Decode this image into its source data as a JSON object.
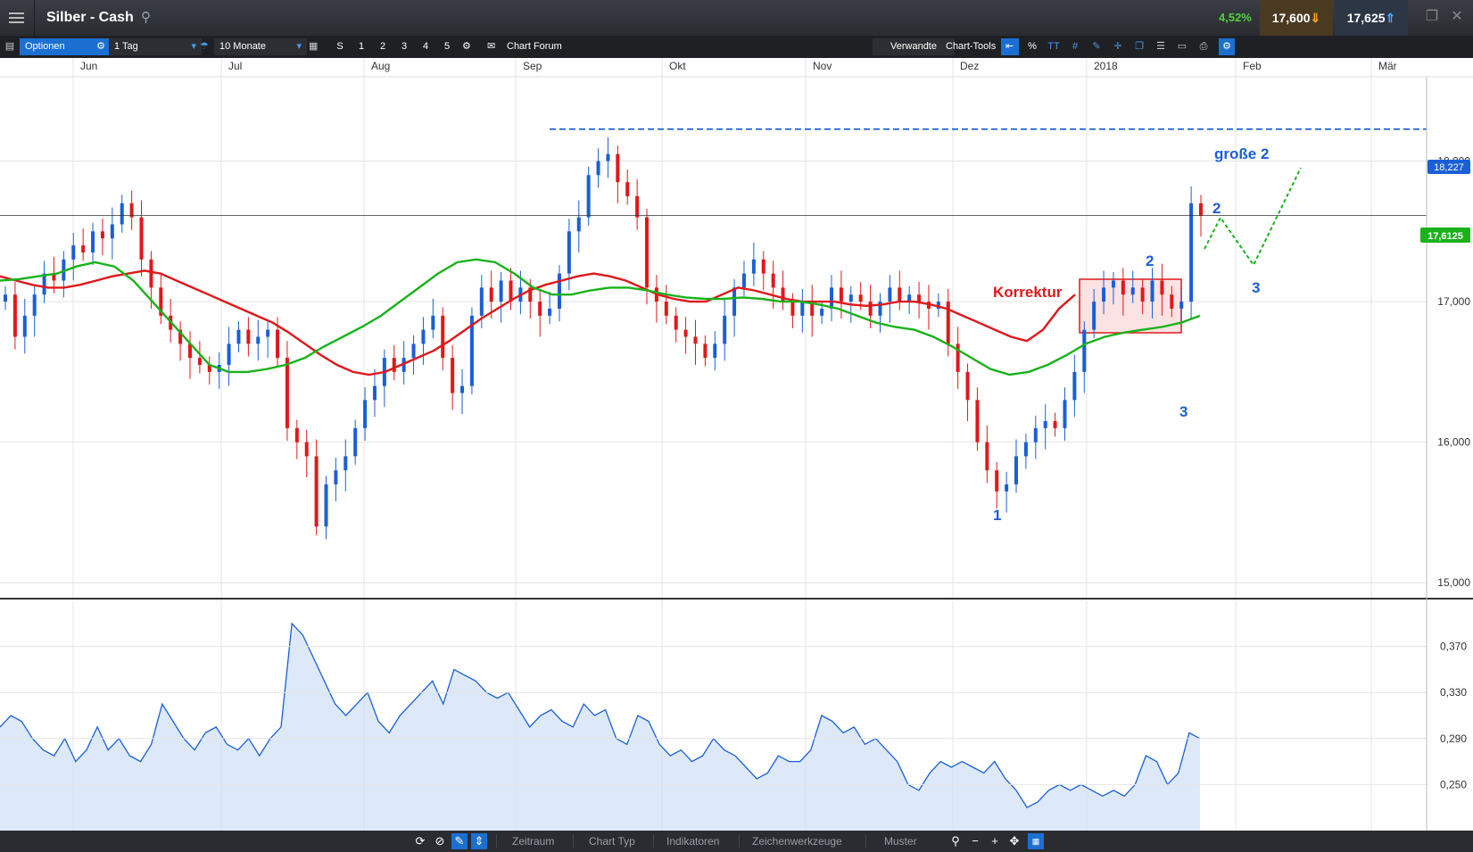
{
  "header": {
    "title": "Silber - Cash",
    "change_pct": "4,52%",
    "sell": "17,600",
    "buy": "17,625"
  },
  "toolbar": {
    "options": "Optionen",
    "interval": "1 Tag",
    "range": "10 Monate",
    "s": "S",
    "n1": "1",
    "n2": "2",
    "n3": "3",
    "n4": "4",
    "n5": "5",
    "forum": "Chart Forum",
    "related": "Verwandte",
    "tools": "Chart-Tools",
    "percent": "%",
    "text_tool": "TT"
  },
  "bottom": {
    "zeitraum": "Zeitraum",
    "chart_typ": "Chart Typ",
    "indikatoren": "Indikatoren",
    "zeichen": "Zeichenwerkzeuge",
    "muster": "Muster"
  },
  "colors": {
    "up": "#1a5fd6",
    "down": "#e0181b",
    "ma_fast": "#e0181b",
    "ma_slow": "#19b21a",
    "annot": "#1a5fd6",
    "last_price": "#19b21a",
    "target": "#1a5fd6"
  },
  "chart_data": [
    {
      "type": "candlestick",
      "x_labels": [
        "Jun",
        "Jul",
        "Aug",
        "Sep",
        "Okt",
        "Nov",
        "Dez",
        "2018",
        "Feb",
        "Mär"
      ],
      "y_ticks": [
        "15,000",
        "16,000",
        "17,000",
        "18,000"
      ],
      "ylim": [
        14.9,
        18.6
      ],
      "last_price": "17,6125",
      "target_price": "18,227",
      "target_value": 18.227,
      "last_value": 17.6125,
      "annotations": [
        "Korrektur",
        "große 2",
        "1",
        "2",
        "3",
        "2",
        "3"
      ],
      "close": [
        17.05,
        16.75,
        16.9,
        17.05,
        17.2,
        17.15,
        17.3,
        17.4,
        17.35,
        17.5,
        17.45,
        17.55,
        17.7,
        17.6,
        17.3,
        17.1,
        16.9,
        16.8,
        16.7,
        16.6,
        16.55,
        16.5,
        16.55,
        16.7,
        16.8,
        16.7,
        16.75,
        16.8,
        16.6,
        16.1,
        16.0,
        15.9,
        15.4,
        15.7,
        15.8,
        15.9,
        16.1,
        16.3,
        16.4,
        16.6,
        16.5,
        16.6,
        16.7,
        16.8,
        16.9,
        16.6,
        16.35,
        16.4,
        16.9,
        17.1,
        17.0,
        17.15,
        17.0,
        17.1,
        17.0,
        16.9,
        16.95,
        17.2,
        17.5,
        17.6,
        17.9,
        18.0,
        18.05,
        17.85,
        17.75,
        17.6,
        17.1,
        17.0,
        16.9,
        16.8,
        16.75,
        16.7,
        16.6,
        16.7,
        16.9,
        17.1,
        17.2,
        17.3,
        17.2,
        17.1,
        17.0,
        16.9,
        17.0,
        16.9,
        16.95,
        17.1,
        17.0,
        17.05,
        17.0,
        16.9,
        17.0,
        17.1,
        17.0,
        17.05,
        17.0,
        16.95,
        17.0,
        16.7,
        16.5,
        16.3,
        16.0,
        15.8,
        15.65,
        15.7,
        15.9,
        16.0,
        16.1,
        16.15,
        16.1,
        16.3,
        16.5,
        16.8,
        17.0,
        17.1,
        17.15,
        17.05,
        17.1,
        17.0,
        17.15,
        17.05,
        16.95,
        17.0,
        17.7,
        17.6125
      ],
      "ma_fast": [
        17.18,
        17.15,
        17.12,
        17.1,
        17.1,
        17.12,
        17.15,
        17.18,
        17.2,
        17.22,
        17.2,
        17.15,
        17.1,
        17.05,
        17.0,
        16.95,
        16.9,
        16.85,
        16.78,
        16.7,
        16.62,
        16.55,
        16.5,
        16.48,
        16.5,
        16.55,
        16.6,
        16.65,
        16.72,
        16.8,
        16.88,
        16.95,
        17.02,
        17.08,
        17.12,
        17.15,
        17.18,
        17.2,
        17.18,
        17.15,
        17.1,
        17.05,
        17.02,
        17.0,
        17.0,
        17.05,
        17.1,
        17.08,
        17.05,
        17.02,
        17.0,
        17.0,
        17.0,
        16.98,
        16.97,
        16.98,
        17.0,
        17.0,
        16.98,
        16.95,
        16.9,
        16.85,
        16.8,
        16.75,
        16.72,
        16.8,
        16.95,
        17.05
      ],
      "ma_slow": [
        17.15,
        17.16,
        17.18,
        17.2,
        17.25,
        17.28,
        17.25,
        17.15,
        17.0,
        16.85,
        16.7,
        16.55,
        16.5,
        16.5,
        16.52,
        16.55,
        16.6,
        16.68,
        16.75,
        16.82,
        16.9,
        17.0,
        17.1,
        17.2,
        17.28,
        17.3,
        17.28,
        17.2,
        17.1,
        17.05,
        17.05,
        17.08,
        17.1,
        17.1,
        17.08,
        17.05,
        17.03,
        17.02,
        17.02,
        17.03,
        17.02,
        17.0,
        17.0,
        16.98,
        16.95,
        16.9,
        16.85,
        16.82,
        16.8,
        16.75,
        16.68,
        16.6,
        16.52,
        16.48,
        16.5,
        16.55,
        16.62,
        16.7,
        16.75,
        16.78,
        16.8,
        16.82,
        16.85,
        16.9
      ]
    },
    {
      "type": "area",
      "y_ticks": [
        "0,250",
        "0,290",
        "0,330",
        "0,370"
      ],
      "ylim": [
        0.21,
        0.41
      ],
      "values": [
        0.3,
        0.31,
        0.305,
        0.29,
        0.28,
        0.275,
        0.29,
        0.27,
        0.28,
        0.3,
        0.28,
        0.29,
        0.275,
        0.27,
        0.285,
        0.32,
        0.305,
        0.29,
        0.28,
        0.295,
        0.3,
        0.285,
        0.28,
        0.29,
        0.275,
        0.29,
        0.3,
        0.39,
        0.38,
        0.36,
        0.34,
        0.32,
        0.31,
        0.32,
        0.33,
        0.305,
        0.295,
        0.31,
        0.32,
        0.33,
        0.34,
        0.32,
        0.35,
        0.345,
        0.34,
        0.33,
        0.325,
        0.33,
        0.315,
        0.3,
        0.31,
        0.315,
        0.305,
        0.3,
        0.32,
        0.31,
        0.315,
        0.29,
        0.285,
        0.31,
        0.305,
        0.285,
        0.275,
        0.28,
        0.27,
        0.275,
        0.29,
        0.28,
        0.275,
        0.265,
        0.255,
        0.26,
        0.275,
        0.27,
        0.27,
        0.28,
        0.31,
        0.305,
        0.295,
        0.3,
        0.285,
        0.29,
        0.28,
        0.27,
        0.25,
        0.245,
        0.26,
        0.27,
        0.265,
        0.27,
        0.265,
        0.26,
        0.27,
        0.255,
        0.245,
        0.23,
        0.235,
        0.245,
        0.25,
        0.245,
        0.25,
        0.245,
        0.24,
        0.245,
        0.24,
        0.25,
        0.275,
        0.27,
        0.25,
        0.26,
        0.295,
        0.29
      ]
    }
  ]
}
